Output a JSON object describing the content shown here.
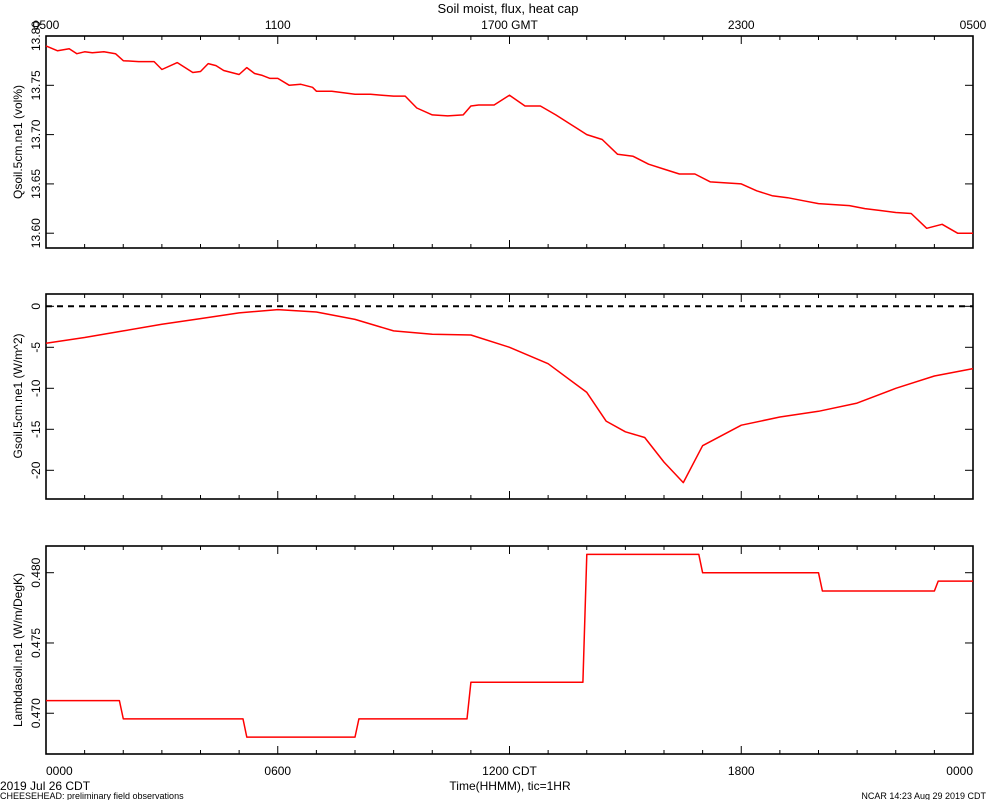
{
  "chart_data": [
    {
      "type": "line",
      "title": "Soil moist, flux, heat cap",
      "top_xticks": [
        "0500",
        "1100",
        "1700 GMT",
        "2300",
        "0500"
      ],
      "ylabel": "Qsoil.5cm.ne1 (vol%)",
      "ylim": [
        13.585,
        13.8
      ],
      "yticks": [
        "13.80",
        "13.75",
        "13.70",
        "13.65",
        "13.60"
      ],
      "ytick_values": [
        13.8,
        13.75,
        13.7,
        13.65,
        13.6
      ],
      "series": [
        {
          "color": "#ff0000",
          "x": [
            0,
            0.3,
            0.6,
            0.8,
            1.0,
            1.2,
            1.5,
            1.8,
            2.0,
            2.4,
            2.8,
            3.0,
            3.4,
            3.8,
            4.0,
            4.2,
            4.4,
            4.6,
            4.8,
            5.0,
            5.2,
            5.4,
            5.6,
            5.8,
            6.0,
            6.3,
            6.6,
            6.9,
            7.0,
            7.4,
            7.8,
            8.0,
            8.4,
            8.7,
            9.0,
            9.3,
            9.6,
            10.0,
            10.4,
            10.8,
            11.0,
            11.2,
            11.6,
            12.0,
            12.4,
            12.8,
            13.2,
            13.6,
            14.0,
            14.4,
            14.8,
            15.2,
            15.6,
            16.0,
            16.4,
            16.8,
            17.2,
            17.6,
            18.0,
            18.4,
            18.8,
            19.2,
            19.6,
            20.0,
            20.4,
            20.8,
            21.2,
            21.6,
            22.0,
            22.4,
            22.8,
            23.2,
            23.6,
            24.0
          ],
          "y": [
            13.79,
            13.785,
            13.787,
            13.782,
            13.784,
            13.783,
            13.784,
            13.782,
            13.775,
            13.774,
            13.774,
            13.766,
            13.773,
            13.763,
            13.764,
            13.772,
            13.77,
            13.765,
            13.763,
            13.761,
            13.768,
            13.762,
            13.76,
            13.757,
            13.757,
            13.75,
            13.751,
            13.748,
            13.744,
            13.744,
            13.742,
            13.741,
            13.741,
            13.74,
            13.739,
            13.739,
            13.727,
            13.72,
            13.719,
            13.72,
            13.729,
            13.73,
            13.73,
            13.74,
            13.729,
            13.729,
            13.72,
            13.71,
            13.7,
            13.695,
            13.68,
            13.678,
            13.67,
            13.665,
            13.66,
            13.66,
            13.652,
            13.651,
            13.65,
            13.643,
            13.638,
            13.636,
            13.633,
            13.63,
            13.629,
            13.628,
            13.625,
            13.623,
            13.621,
            13.62,
            13.605,
            13.609,
            13.6,
            13.6
          ]
        }
      ]
    },
    {
      "type": "line",
      "ylabel": "Gsoil.5cm.ne1 (W/m^2)",
      "ylim": [
        -23.5,
        1.5
      ],
      "yticks": [
        "0",
        "-5",
        "-10",
        "-15",
        "-20"
      ],
      "ytick_values": [
        0,
        -5,
        -10,
        -15,
        -20
      ],
      "reference_line": 0,
      "series": [
        {
          "color": "#ff0000",
          "x": [
            0,
            1,
            2,
            3,
            4,
            5,
            6,
            7,
            8,
            9,
            10,
            11,
            12,
            13,
            14,
            14.5,
            15,
            15.5,
            16,
            16.5,
            17,
            18,
            19,
            20,
            21,
            22,
            23,
            24
          ],
          "y": [
            -4.5,
            -3.8,
            -3.0,
            -2.2,
            -1.5,
            -0.8,
            -0.4,
            -0.7,
            -1.6,
            -3.0,
            -3.4,
            -3.5,
            -5.0,
            -7.0,
            -10.5,
            -14.0,
            -15.3,
            -16.0,
            -19.0,
            -21.5,
            -17.0,
            -14.5,
            -13.5,
            -12.8,
            -11.8,
            -10.0,
            -8.5,
            -7.6
          ]
        }
      ]
    },
    {
      "type": "line",
      "ylabel": "Lambdasoil.ne1 (W/m/DegK)",
      "ylim": [
        0.4671,
        0.4819
      ],
      "yticks": [
        "0.480",
        "0.475",
        "0.470"
      ],
      "ytick_values": [
        0.48,
        0.475,
        0.47
      ],
      "xticks": [
        "0000",
        "0600",
        "1200 CDT",
        "1800",
        "0000"
      ],
      "xtick_values": [
        0,
        6,
        12,
        18,
        24
      ],
      "xlabel": "Time(HHMM), tic=1HR",
      "xlim": [
        0,
        24
      ],
      "series": [
        {
          "color": "#ff0000",
          "x": [
            0,
            1.9,
            2.0,
            5.1,
            5.2,
            8.0,
            8.1,
            10.9,
            11.0,
            13.9,
            14.0,
            16.9,
            17.0,
            20.0,
            20.1,
            23.0,
            23.1,
            24.0
          ],
          "y": [
            0.4709,
            0.4709,
            0.4696,
            0.4696,
            0.4683,
            0.4683,
            0.4696,
            0.4696,
            0.4722,
            0.4722,
            0.4813,
            0.4813,
            0.48,
            0.48,
            0.4787,
            0.4787,
            0.4794,
            0.4794
          ]
        }
      ]
    }
  ],
  "footer": {
    "date": "2019 Jul 26 CDT",
    "project": "CHEESEHEAD: preliminary field observations",
    "credit": "NCAR 14:23 Aug 29 2019 CDT"
  }
}
